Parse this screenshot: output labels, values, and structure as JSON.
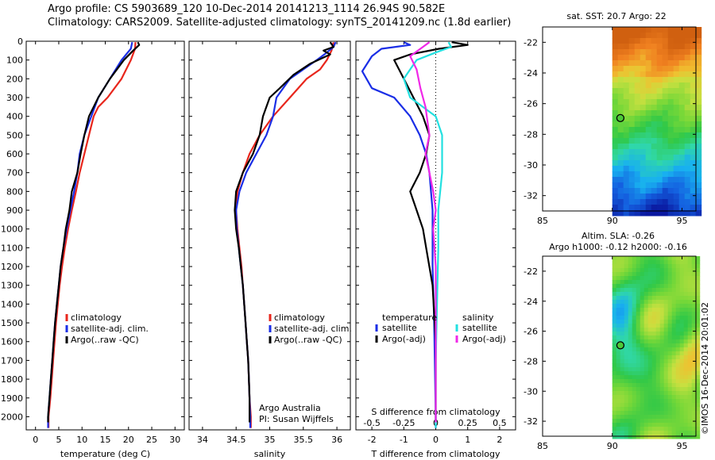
{
  "header": {
    "line1": "Argo profile: CS 5903689_120 10-Dec-2014 20141213_1114 26.94S 90.582E",
    "line2": "Climatology: CARS2009. Satellite-adjusted climatology: synTS_20141209.nc (1.8d earlier)"
  },
  "colors": {
    "climatology": "#e8261c",
    "satellite": "#1a2ee6",
    "argo": "#000000",
    "sat_salt": "#22e0e0",
    "argo_salt": "#f028e8"
  },
  "depth_axis": {
    "ticks": [
      0,
      100,
      200,
      300,
      400,
      500,
      600,
      700,
      800,
      900,
      1000,
      1100,
      1200,
      1300,
      1400,
      1500,
      1600,
      1700,
      1800,
      1900,
      2000
    ],
    "range": [
      0,
      2070
    ]
  },
  "chart_data": [
    {
      "id": "temperature",
      "type": "line",
      "xlabel": "temperature (deg C)",
      "xlim": [
        -2,
        32
      ],
      "xticks": [
        0,
        5,
        10,
        15,
        20,
        25,
        30
      ],
      "legend": [
        "climatology",
        "satellite-adj. clim.",
        "Argo(..raw -QC)"
      ],
      "series": [
        {
          "name": "climatology",
          "points": [
            [
              21.5,
              5
            ],
            [
              21.4,
              40
            ],
            [
              20.5,
              100
            ],
            [
              18.5,
              200
            ],
            [
              15.5,
              300
            ],
            [
              13.5,
              350
            ],
            [
              12.5,
              400
            ],
            [
              11.5,
              500
            ],
            [
              10.5,
              600
            ],
            [
              9.5,
              700
            ],
            [
              8.7,
              800
            ],
            [
              7.8,
              900
            ],
            [
              7.0,
              1000
            ],
            [
              6.3,
              1100
            ],
            [
              5.7,
              1200
            ],
            [
              5.2,
              1300
            ],
            [
              4.8,
              1400
            ],
            [
              4.4,
              1500
            ],
            [
              4.1,
              1600
            ],
            [
              3.8,
              1700
            ],
            [
              3.5,
              1800
            ],
            [
              3.2,
              1900
            ],
            [
              2.8,
              2000
            ],
            [
              2.8,
              2060
            ]
          ]
        },
        {
          "name": "satellite-adj. clim.",
          "points": [
            [
              20.8,
              5
            ],
            [
              20.5,
              40
            ],
            [
              18.5,
              100
            ],
            [
              16.0,
              200
            ],
            [
              13.5,
              300
            ],
            [
              12.0,
              400
            ],
            [
              10.5,
              500
            ],
            [
              9.5,
              600
            ],
            [
              9.0,
              700
            ],
            [
              8.3,
              800
            ],
            [
              7.5,
              900
            ],
            [
              6.7,
              1000
            ],
            [
              6.0,
              1100
            ],
            [
              5.4,
              1200
            ],
            [
              5.0,
              1300
            ],
            [
              4.6,
              1400
            ],
            [
              4.2,
              1500
            ],
            [
              3.9,
              1600
            ],
            [
              3.6,
              1700
            ],
            [
              3.3,
              1800
            ],
            [
              3.0,
              1900
            ],
            [
              2.7,
              2000
            ],
            [
              2.7,
              2060
            ]
          ]
        },
        {
          "name": "Argo(..raw -QC)",
          "points": [
            [
              22.0,
              5
            ],
            [
              22.3,
              20
            ],
            [
              21.0,
              50
            ],
            [
              19.0,
              100
            ],
            [
              16.0,
              200
            ],
            [
              13.5,
              300
            ],
            [
              11.5,
              400
            ],
            [
              10.5,
              500
            ],
            [
              9.7,
              600
            ],
            [
              9.0,
              700
            ],
            [
              7.8,
              800
            ],
            [
              7.3,
              900
            ],
            [
              6.5,
              1000
            ],
            [
              6.0,
              1100
            ],
            [
              5.4,
              1200
            ],
            [
              5.0,
              1300
            ],
            [
              4.6,
              1400
            ],
            [
              4.2,
              1500
            ],
            [
              3.9,
              1600
            ],
            [
              3.6,
              1700
            ],
            [
              3.3,
              1800
            ],
            [
              3.0,
              1900
            ],
            [
              2.7,
              2000
            ],
            [
              2.7,
              2030
            ]
          ]
        }
      ]
    },
    {
      "id": "salinity",
      "type": "line",
      "xlabel": "salinity",
      "xlim": [
        33.8,
        36.2
      ],
      "xticks": [
        34,
        34.5,
        35,
        35.5,
        36
      ],
      "xtick_labels": [
        "34",
        "34.5",
        "35",
        "35.5",
        "36"
      ],
      "legend": [
        "climatology",
        "satellite-adj. clim.",
        "Argo(..raw -QC)"
      ],
      "annotation": [
        "Argo Australia",
        "PI: Susan Wijffels"
      ],
      "series": [
        {
          "name": "climatology",
          "points": [
            [
              35.95,
              5
            ],
            [
              35.92,
              50
            ],
            [
              35.85,
              100
            ],
            [
              35.75,
              150
            ],
            [
              35.55,
              200
            ],
            [
              35.3,
              300
            ],
            [
              35.05,
              400
            ],
            [
              34.85,
              500
            ],
            [
              34.7,
              600
            ],
            [
              34.6,
              700
            ],
            [
              34.52,
              800
            ],
            [
              34.5,
              900
            ],
            [
              34.52,
              1000
            ],
            [
              34.55,
              1100
            ],
            [
              34.58,
              1200
            ],
            [
              34.6,
              1300
            ],
            [
              34.62,
              1400
            ],
            [
              34.64,
              1500
            ],
            [
              34.66,
              1600
            ],
            [
              34.68,
              1700
            ],
            [
              34.69,
              1800
            ],
            [
              34.7,
              1900
            ],
            [
              34.72,
              2000
            ],
            [
              34.72,
              2060
            ]
          ]
        },
        {
          "name": "satellite-adj. clim.",
          "points": [
            [
              35.98,
              5
            ],
            [
              35.95,
              30
            ],
            [
              35.85,
              60
            ],
            [
              35.7,
              100
            ],
            [
              35.5,
              150
            ],
            [
              35.3,
              200
            ],
            [
              35.1,
              300
            ],
            [
              35.05,
              400
            ],
            [
              34.95,
              500
            ],
            [
              34.8,
              600
            ],
            [
              34.65,
              700
            ],
            [
              34.55,
              800
            ],
            [
              34.5,
              900
            ],
            [
              34.51,
              1000
            ],
            [
              34.54,
              1100
            ],
            [
              34.57,
              1200
            ],
            [
              34.6,
              1300
            ],
            [
              34.62,
              1400
            ],
            [
              34.64,
              1500
            ],
            [
              34.66,
              1600
            ],
            [
              34.68,
              1700
            ],
            [
              34.69,
              1800
            ],
            [
              34.7,
              1900
            ],
            [
              34.71,
              2000
            ],
            [
              34.71,
              2060
            ]
          ]
        },
        {
          "name": "Argo(..raw -QC)",
          "points": [
            [
              35.9,
              5
            ],
            [
              35.95,
              30
            ],
            [
              35.8,
              50
            ],
            [
              35.9,
              70
            ],
            [
              35.6,
              120
            ],
            [
              35.35,
              180
            ],
            [
              35.15,
              250
            ],
            [
              35.0,
              300
            ],
            [
              34.9,
              400
            ],
            [
              34.85,
              500
            ],
            [
              34.75,
              600
            ],
            [
              34.6,
              700
            ],
            [
              34.5,
              800
            ],
            [
              34.48,
              900
            ],
            [
              34.5,
              1000
            ],
            [
              34.54,
              1100
            ],
            [
              34.57,
              1200
            ],
            [
              34.6,
              1300
            ],
            [
              34.62,
              1400
            ],
            [
              34.64,
              1500
            ],
            [
              34.66,
              1600
            ],
            [
              34.68,
              1700
            ],
            [
              34.69,
              1800
            ],
            [
              34.7,
              1900
            ],
            [
              34.7,
              2000
            ],
            [
              34.7,
              2030
            ]
          ]
        }
      ]
    },
    {
      "id": "differences",
      "type": "line",
      "xlabel": "T difference from climatology",
      "xlim": [
        -2.5,
        2.5
      ],
      "xticks": [
        -2,
        -1,
        0,
        1,
        2
      ],
      "top_label": "S difference from climatology",
      "top_ticks": [
        -0.5,
        -0.25,
        0,
        0.25,
        0.5
      ],
      "top_tick_labels": [
        "-0.5",
        "-0.25",
        "0",
        "0.25",
        "0.5"
      ],
      "legend_headers": [
        "temperature",
        "salinity"
      ],
      "legend": [
        "satellite",
        "Argo(-adj)",
        "satellite",
        "Argo(-adj)"
      ],
      "series": [
        {
          "name": "temperature satellite",
          "points": [
            [
              -1.0,
              5
            ],
            [
              -0.8,
              20
            ],
            [
              -1.7,
              40
            ],
            [
              -2.0,
              80
            ],
            [
              -2.3,
              160
            ],
            [
              -2.0,
              250
            ],
            [
              -1.3,
              300
            ],
            [
              -0.8,
              400
            ],
            [
              -0.5,
              500
            ],
            [
              -0.3,
              600
            ],
            [
              -0.2,
              700
            ],
            [
              -0.15,
              800
            ],
            [
              -0.1,
              900
            ],
            [
              -0.1,
              1000
            ],
            [
              -0.1,
              1200
            ],
            [
              -0.05,
              1500
            ],
            [
              0.0,
              2000
            ],
            [
              0.0,
              2060
            ]
          ]
        },
        {
          "name": "temperature Argo(-adj)",
          "points": [
            [
              0.5,
              5
            ],
            [
              1.0,
              20
            ],
            [
              0.1,
              40
            ],
            [
              -0.8,
              70
            ],
            [
              -1.3,
              100
            ],
            [
              -1.0,
              200
            ],
            [
              -0.7,
              300
            ],
            [
              -0.4,
              400
            ],
            [
              -0.2,
              500
            ],
            [
              -0.3,
              600
            ],
            [
              -0.5,
              700
            ],
            [
              -0.8,
              800
            ],
            [
              -0.6,
              900
            ],
            [
              -0.4,
              1000
            ],
            [
              -0.3,
              1100
            ],
            [
              -0.1,
              1300
            ],
            [
              0.0,
              1600
            ],
            [
              0.0,
              2000
            ],
            [
              0.0,
              2030
            ]
          ]
        },
        {
          "name": "salinity satellite",
          "points": [
            [
              0.1,
              5
            ],
            [
              0.12,
              30
            ],
            [
              0.0,
              60
            ],
            [
              -0.15,
              100
            ],
            [
              -0.2,
              150
            ],
            [
              -0.25,
              200
            ],
            [
              -0.2,
              300
            ],
            [
              0.0,
              400
            ],
            [
              0.05,
              500
            ],
            [
              0.05,
              700
            ],
            [
              0.02,
              900
            ],
            [
              0.02,
              1100
            ],
            [
              0.01,
              1400
            ],
            [
              0.0,
              1700
            ],
            [
              0.0,
              2000
            ],
            [
              0.0,
              2060
            ]
          ]
        },
        {
          "name": "salinity Argo(-adj)",
          "points": [
            [
              -0.05,
              5
            ],
            [
              -0.1,
              30
            ],
            [
              -0.2,
              80
            ],
            [
              -0.15,
              150
            ],
            [
              -0.12,
              250
            ],
            [
              -0.08,
              350
            ],
            [
              -0.05,
              500
            ],
            [
              -0.08,
              600
            ],
            [
              -0.05,
              700
            ],
            [
              -0.02,
              800
            ],
            [
              0.0,
              900
            ],
            [
              -0.02,
              1000
            ],
            [
              0.0,
              1200
            ],
            [
              0.0,
              1600
            ],
            [
              0.0,
              2000
            ],
            [
              0.0,
              2030
            ]
          ]
        }
      ]
    },
    {
      "id": "sst_map",
      "type": "heatmap",
      "title": "sat. SST: 20.7 Argo: 22",
      "xticks": [
        85,
        90,
        95
      ],
      "yticks": [
        -22,
        -24,
        -26,
        -28,
        -30,
        -32
      ],
      "xlim": [
        85,
        96
      ],
      "ylim": [
        -33,
        -21
      ],
      "data_lon_range": [
        90,
        96
      ],
      "float": {
        "lon": 90.58,
        "lat": -26.94
      }
    },
    {
      "id": "sla_map",
      "type": "heatmap",
      "title": "Altim. SLA: -0.26",
      "subtitle": "Argo h1000: -0.12 h2000: -0.16",
      "xticks": [
        85,
        90,
        95
      ],
      "yticks": [
        -22,
        -24,
        -26,
        -28,
        -30,
        -32
      ],
      "xlim": [
        85,
        96
      ],
      "ylim": [
        -33,
        -21
      ],
      "data_lon_range": [
        90,
        96
      ],
      "float": {
        "lon": 90.58,
        "lat": -26.94
      }
    }
  ],
  "credit": "©IMOS 16-Dec-2014 20:01:02"
}
